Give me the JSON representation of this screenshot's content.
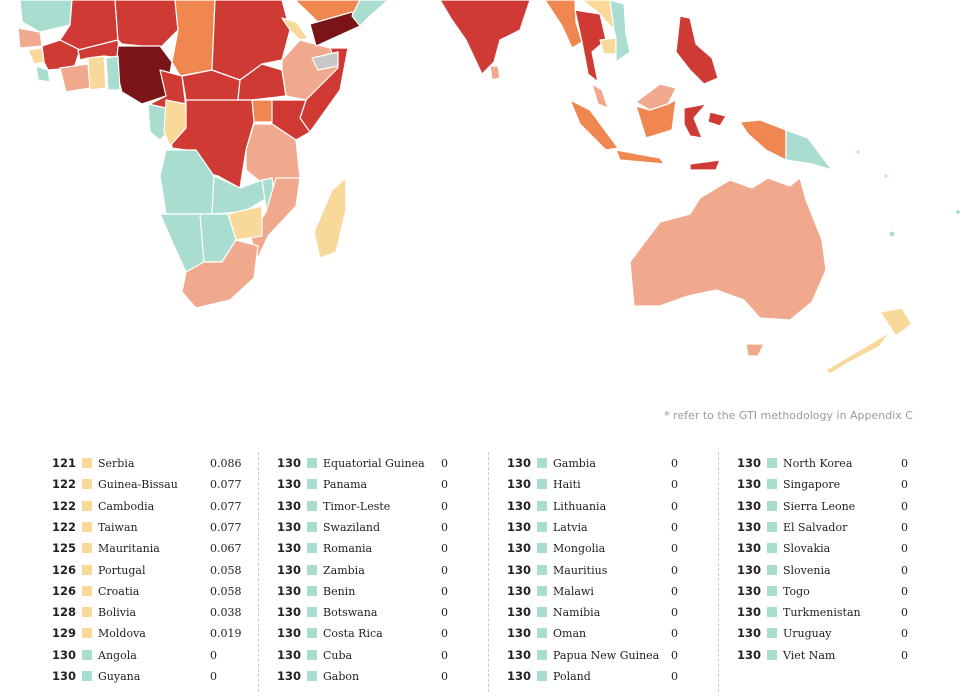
{
  "footnote": "* refer to the GTI methodology in Appendix C",
  "colors": {
    "very_high": "#7a1419",
    "high": "#cf3a34",
    "medium_high": "#f08650",
    "medium": "#f0a98d",
    "low": "#f8d99a",
    "none": "#a9ddd0",
    "no_data": "#c8c8c8"
  },
  "columns": [
    {
      "rows": [
        {
          "rank": "121",
          "country": "Serbia",
          "score": "0.086",
          "level": "low"
        },
        {
          "rank": "122",
          "country": "Guinea-Bissau",
          "score": "0.077",
          "level": "low"
        },
        {
          "rank": "122",
          "country": "Cambodia",
          "score": "0.077",
          "level": "low"
        },
        {
          "rank": "122",
          "country": "Taiwan",
          "score": "0.077",
          "level": "low"
        },
        {
          "rank": "125",
          "country": "Mauritania",
          "score": "0.067",
          "level": "low"
        },
        {
          "rank": "126",
          "country": "Portugal",
          "score": "0.058",
          "level": "low"
        },
        {
          "rank": "126",
          "country": "Croatia",
          "score": "0.058",
          "level": "low"
        },
        {
          "rank": "128",
          "country": "Bolivia",
          "score": "0.038",
          "level": "low"
        },
        {
          "rank": "129",
          "country": "Moldova",
          "score": "0.019",
          "level": "low"
        },
        {
          "rank": "130",
          "country": "Angola",
          "score": "0",
          "level": "none"
        },
        {
          "rank": "130",
          "country": "Guyana",
          "score": "0",
          "level": "none"
        }
      ]
    },
    {
      "rows": [
        {
          "rank": "130",
          "country": "Equatorial Guinea",
          "score": "0",
          "level": "none"
        },
        {
          "rank": "130",
          "country": "Panama",
          "score": "0",
          "level": "none"
        },
        {
          "rank": "130",
          "country": "Timor-Leste",
          "score": "0",
          "level": "none"
        },
        {
          "rank": "130",
          "country": "Swaziland",
          "score": "0",
          "level": "none"
        },
        {
          "rank": "130",
          "country": "Romania",
          "score": "0",
          "level": "none"
        },
        {
          "rank": "130",
          "country": "Zambia",
          "score": "0",
          "level": "none"
        },
        {
          "rank": "130",
          "country": "Benin",
          "score": "0",
          "level": "none"
        },
        {
          "rank": "130",
          "country": "Botswana",
          "score": "0",
          "level": "none"
        },
        {
          "rank": "130",
          "country": "Costa Rica",
          "score": "0",
          "level": "none"
        },
        {
          "rank": "130",
          "country": "Cuba",
          "score": "0",
          "level": "none"
        },
        {
          "rank": "130",
          "country": "Gabon",
          "score": "0",
          "level": "none"
        }
      ]
    },
    {
      "rows": [
        {
          "rank": "130",
          "country": "Gambia",
          "score": "0",
          "level": "none"
        },
        {
          "rank": "130",
          "country": "Haiti",
          "score": "0",
          "level": "none"
        },
        {
          "rank": "130",
          "country": "Lithuania",
          "score": "0",
          "level": "none"
        },
        {
          "rank": "130",
          "country": "Latvia",
          "score": "0",
          "level": "none"
        },
        {
          "rank": "130",
          "country": "Mongolia",
          "score": "0",
          "level": "none"
        },
        {
          "rank": "130",
          "country": "Mauritius",
          "score": "0",
          "level": "none"
        },
        {
          "rank": "130",
          "country": "Malawi",
          "score": "0",
          "level": "none"
        },
        {
          "rank": "130",
          "country": "Namibia",
          "score": "0",
          "level": "none"
        },
        {
          "rank": "130",
          "country": "Oman",
          "score": "0",
          "level": "none"
        },
        {
          "rank": "130",
          "country": "Papua New Guinea",
          "score": "0",
          "level": "none"
        },
        {
          "rank": "130",
          "country": "Poland",
          "score": "0",
          "level": "none"
        }
      ]
    },
    {
      "rows": [
        {
          "rank": "130",
          "country": "North Korea",
          "score": "0",
          "level": "none"
        },
        {
          "rank": "130",
          "country": "Singapore",
          "score": "0",
          "level": "none"
        },
        {
          "rank": "130",
          "country": "Sierra Leone",
          "score": "0",
          "level": "none"
        },
        {
          "rank": "130",
          "country": "El Salvador",
          "score": "0",
          "level": "none"
        },
        {
          "rank": "130",
          "country": "Slovakia",
          "score": "0",
          "level": "none"
        },
        {
          "rank": "130",
          "country": "Slovenia",
          "score": "0",
          "level": "none"
        },
        {
          "rank": "130",
          "country": "Togo",
          "score": "0",
          "level": "none"
        },
        {
          "rank": "130",
          "country": "Turkmenistan",
          "score": "0",
          "level": "none"
        },
        {
          "rank": "130",
          "country": "Uruguay",
          "score": "0",
          "level": "none"
        },
        {
          "rank": "130",
          "country": "Viet Nam",
          "score": "0",
          "level": "none"
        }
      ]
    }
  ]
}
